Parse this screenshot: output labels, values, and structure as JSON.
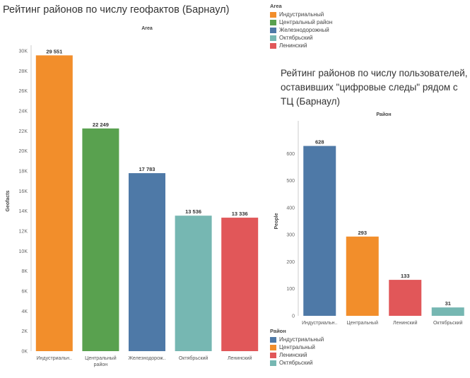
{
  "charts": [
    {
      "title": "Рейтинг районов по числу геофактов (Барнаул)",
      "legend": {
        "title": "Area",
        "items": [
          {
            "label": "Индустриальный",
            "color": "#f28e2b"
          },
          {
            "label": "Центральный район",
            "color": "#59a14f"
          },
          {
            "label": "Железнодорожный",
            "color": "#4e79a7"
          },
          {
            "label": "Октябрьский",
            "color": "#76b7b2"
          },
          {
            "label": "Ленинский",
            "color": "#e15759"
          }
        ]
      }
    },
    {
      "title": "Рейтинг районов по числу пользователей, оставивших \"цифровые следы\" рядом с ТЦ (Барнаул)",
      "legend": {
        "title": "Район",
        "items": [
          {
            "label": "Индустриальный",
            "color": "#4e79a7"
          },
          {
            "label": "Центральный",
            "color": "#f28e2b"
          },
          {
            "label": "Ленинский",
            "color": "#e15759"
          },
          {
            "label": "Октябрьский",
            "color": "#76b7b2"
          }
        ]
      }
    }
  ],
  "chart_data": [
    {
      "type": "bar",
      "title": "Рейтинг районов по числу геофактов (Барнаул)",
      "header": "Area",
      "xlabel": "",
      "ylabel": "Geofacts",
      "ylim": [
        0,
        30000
      ],
      "yticks": [
        0,
        2000,
        4000,
        6000,
        8000,
        10000,
        12000,
        14000,
        16000,
        18000,
        20000,
        22000,
        24000,
        26000,
        28000,
        30000
      ],
      "ytick_labels": [
        "0K",
        "2K",
        "4K",
        "6K",
        "8K",
        "10K",
        "12K",
        "14K",
        "16K",
        "18K",
        "20K",
        "22K",
        "24K",
        "26K",
        "28K",
        "30K"
      ],
      "categories": [
        "Индустриальн..",
        "Центральный район",
        "Железнодорож..",
        "Октябрьский",
        "Ленинский"
      ],
      "tick_labels": [
        [
          "Индустриальн.."
        ],
        [
          "Центральный",
          "район"
        ],
        [
          "Железнодорож.."
        ],
        [
          "Октябрьский"
        ],
        [
          "Ленинский"
        ]
      ],
      "values": [
        29551,
        22249,
        17783,
        13536,
        13336
      ],
      "value_labels": [
        "29 551",
        "22 249",
        "17 783",
        "13 536",
        "13 336"
      ],
      "colors": [
        "#f28e2b",
        "#59a14f",
        "#4e79a7",
        "#76b7b2",
        "#e15759"
      ],
      "grid": false,
      "legend_position": "top-right"
    },
    {
      "type": "bar",
      "title": "Рейтинг районов по числу пользователей, оставивших \"цифровые следы\" рядом с ТЦ (Барнаул)",
      "header": "Район",
      "xlabel": "",
      "ylabel": "People",
      "ylim": [
        0,
        700
      ],
      "yticks": [
        0,
        100,
        200,
        300,
        400,
        500,
        600
      ],
      "ytick_labels": [
        "0",
        "100",
        "200",
        "300",
        "400",
        "500",
        "600"
      ],
      "categories": [
        "Индустриальн..",
        "Центральный",
        "Ленинский",
        "Октябрьский"
      ],
      "tick_labels": [
        [
          "Индустриальн.."
        ],
        [
          "Центральный"
        ],
        [
          "Ленинский"
        ],
        [
          "Октябрьский"
        ]
      ],
      "values": [
        628,
        293,
        133,
        31
      ],
      "value_labels": [
        "628",
        "293",
        "133",
        "31"
      ],
      "colors": [
        "#4e79a7",
        "#f28e2b",
        "#e15759",
        "#76b7b2"
      ],
      "grid": false,
      "legend_position": "bottom-left"
    }
  ]
}
